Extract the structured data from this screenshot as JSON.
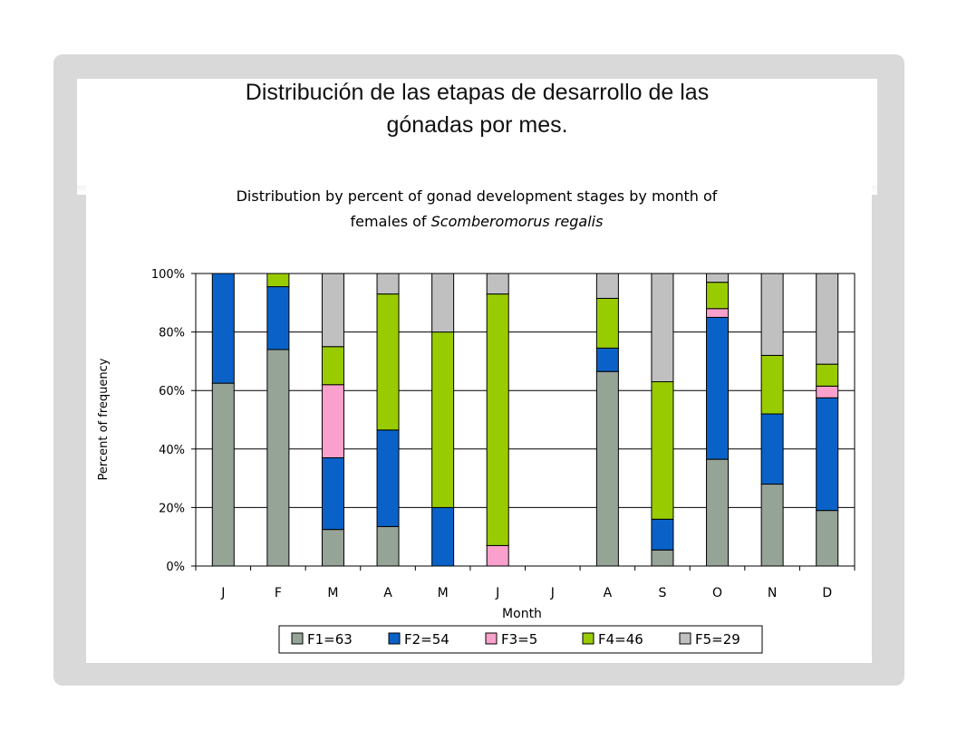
{
  "slide": {
    "title_line1": "Distribución de las etapas de desarrollo de las",
    "title_line2": "gónadas por mes."
  },
  "chart_data": {
    "type": "bar",
    "stacked": true,
    "title_line1": "Distribution by percent of gonad development stages by month of",
    "title_line2_prefix": "females of ",
    "title_line2_italic": "Scomberomorus regalis",
    "xlabel": "Month",
    "ylabel": "Percent of frequency",
    "ylim": [
      0,
      100
    ],
    "yticks": [
      "0%",
      "20%",
      "40%",
      "60%",
      "80%",
      "100%"
    ],
    "categories": [
      "J",
      "F",
      "M",
      "A",
      "M",
      "J",
      "J",
      "A",
      "S",
      "O",
      "N",
      "D"
    ],
    "grid": true,
    "legend_position": "bottom",
    "series": [
      {
        "name": "F1=63",
        "color": "#96a397",
        "values": [
          62.5,
          74,
          12.5,
          13.5,
          0,
          0,
          0,
          66.5,
          5.5,
          36.5,
          28,
          19
        ]
      },
      {
        "name": "F2=54",
        "color": "#0a62c8",
        "values": [
          37.5,
          21.5,
          24.5,
          33,
          20,
          0,
          0,
          8,
          10.5,
          48.5,
          24,
          38.5
        ]
      },
      {
        "name": "F3=5",
        "color": "#f9a0cc",
        "values": [
          0,
          0,
          25,
          0,
          0,
          7,
          0,
          0,
          0,
          3,
          0,
          4
        ]
      },
      {
        "name": "F4=46",
        "color": "#99cc00",
        "values": [
          0,
          4.5,
          13,
          46.5,
          60,
          86,
          0,
          17,
          47,
          9,
          20,
          7.5
        ]
      },
      {
        "name": "F5=29",
        "color": "#c0c0c0",
        "values": [
          0,
          0,
          25,
          7,
          20,
          7,
          0,
          8.5,
          37,
          3,
          28,
          31
        ]
      }
    ]
  }
}
